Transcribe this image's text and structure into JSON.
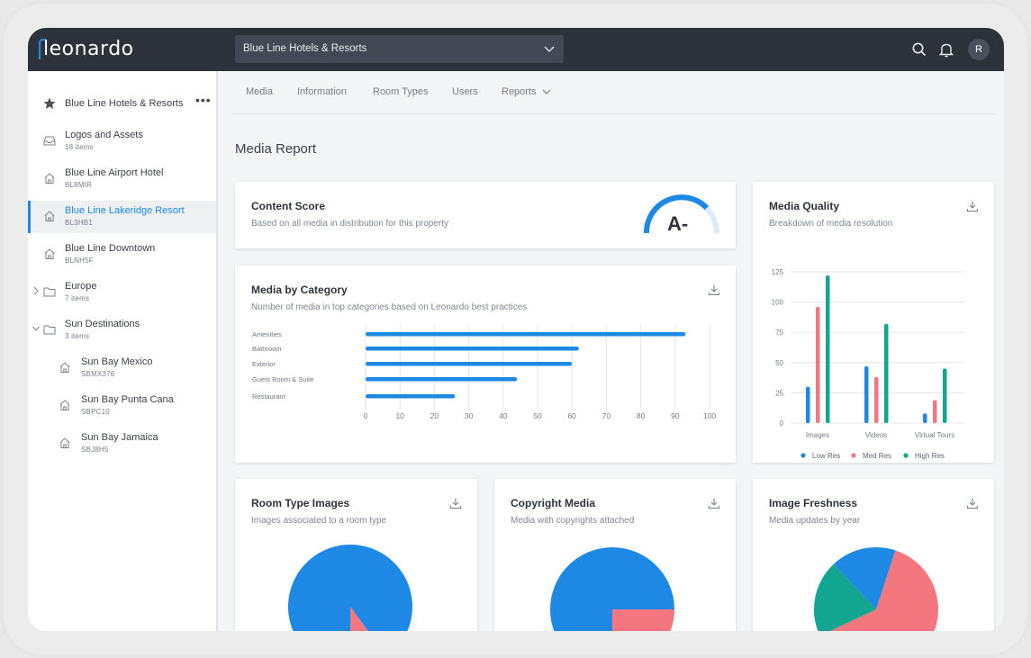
{
  "app": {
    "logo": "leonardo"
  },
  "header": {
    "property_select": "Blue Line Hotels & Resorts",
    "avatar_initial": "R"
  },
  "sidebar": {
    "root": {
      "label": "Blue Line Hotels & Resorts",
      "more": "•••"
    },
    "items": [
      {
        "name": "Logos and Assets",
        "sub": "18 items",
        "icon": "inbox-icon"
      },
      {
        "name": "Blue Line Airport Hotel",
        "sub": "BL8MIR",
        "icon": "home-icon"
      },
      {
        "name": "Blue Line Lakeridge Resort",
        "sub": "BL3HB1",
        "icon": "home-icon"
      },
      {
        "name": "Blue Line Downtown",
        "sub": "BLNH5F",
        "icon": "home-icon"
      },
      {
        "name": "Europe",
        "sub": "7 items",
        "icon": "folder-icon"
      },
      {
        "name": "Sun Destinations",
        "sub": "3 items",
        "icon": "folder-icon"
      },
      {
        "name": "Sun Bay Mexico",
        "sub": "SBMX376",
        "icon": "home-icon"
      },
      {
        "name": "Sun Bay Punta Cana",
        "sub": "SBPC10",
        "icon": "home-icon"
      },
      {
        "name": "Sun Bay Jamaica",
        "sub": "SBJ8H5",
        "icon": "home-icon"
      }
    ]
  },
  "tabs": [
    "Media",
    "Information",
    "Room Types",
    "Users",
    "Reports"
  ],
  "page": {
    "title": "Media Report"
  },
  "content_score": {
    "title": "Content Score",
    "subtitle": "Based on all media in distribution for this property",
    "grade": "A-"
  },
  "media_by_category": {
    "title": "Media by Category",
    "subtitle": "Number of media in top categories based on Leonardo best practices"
  },
  "media_quality": {
    "title": "Media Quality",
    "subtitle": "Breakdown of media resolution"
  },
  "room_type_images": {
    "title": "Room Type Images",
    "subtitle": "Images associated to a room type"
  },
  "copyright_media": {
    "title": "Copyright Media",
    "subtitle": "Media with copyrights attached"
  },
  "image_freshness": {
    "title": "Image Freshness",
    "subtitle": "Media updates by year"
  },
  "colors": {
    "blue": "#1e88e5",
    "pink": "#f4777f",
    "teal": "#12a58f",
    "topbar": "#2c313a"
  },
  "chart_data": [
    {
      "type": "bar",
      "orientation": "horizontal",
      "categories": [
        "Amenities",
        "Bathroom",
        "Exterior",
        "Guest Room & Suite",
        "Restaurant"
      ],
      "values": [
        93,
        62,
        60,
        44,
        26
      ],
      "xlim": [
        0,
        100
      ],
      "xticks": [
        0,
        10,
        20,
        30,
        40,
        50,
        60,
        70,
        80,
        90,
        100
      ],
      "grid": true
    },
    {
      "type": "bar",
      "categories": [
        "Images",
        "Videos",
        "Virtual Tours"
      ],
      "series": [
        {
          "name": "Low Res",
          "values": [
            30,
            47,
            8
          ]
        },
        {
          "name": "Med Res",
          "values": [
            96,
            38,
            19
          ]
        },
        {
          "name": "High Res",
          "values": [
            122,
            82,
            45
          ]
        }
      ],
      "ylim": [
        0,
        125
      ],
      "yticks": [
        0,
        25,
        50,
        75,
        100,
        125
      ],
      "legend": "bottom",
      "grid": true
    },
    {
      "type": "pie",
      "values": [
        90,
        10
      ],
      "partial": true
    },
    {
      "type": "pie",
      "values": [
        75,
        25
      ],
      "partial": true
    },
    {
      "type": "pie",
      "values": [
        63,
        20,
        17
      ],
      "partial": true
    }
  ]
}
